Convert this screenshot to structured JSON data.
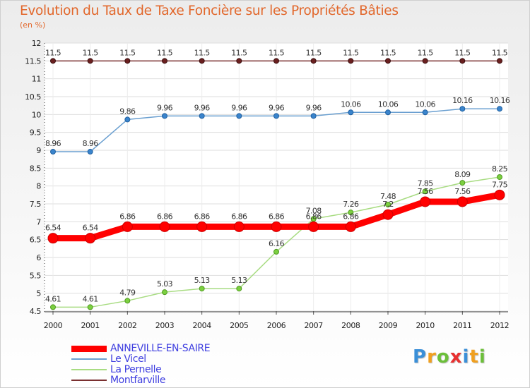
{
  "chart_data": {
    "type": "line",
    "title": "Evolution du Taux de Taxe Foncière sur les Propriétés Bâties",
    "unit_label": "(en %)",
    "x": [
      "2000",
      "2001",
      "2002",
      "2003",
      "2004",
      "2005",
      "2006",
      "2007",
      "2008",
      "2009",
      "2010",
      "2011",
      "2012"
    ],
    "ylim": [
      4.5,
      12
    ],
    "yticks": [
      "4.5",
      "5",
      "5.5",
      "6",
      "6.5",
      "7",
      "7.5",
      "8",
      "8.5",
      "9",
      "9.5",
      "10",
      "10.5",
      "11",
      "11.5",
      "12"
    ],
    "grid": true,
    "series": [
      {
        "name": "ANNEVILLE-EN-SAIRE",
        "color": "#ff0000",
        "values": [
          6.54,
          6.54,
          6.86,
          6.86,
          6.86,
          6.86,
          6.86,
          6.86,
          6.86,
          7.2,
          7.56,
          7.56,
          7.75
        ],
        "labels": [
          "6.54",
          "6.54",
          "6.86",
          "6.86",
          "6.86",
          "6.86",
          "6.86",
          "6.86",
          "6.86",
          "7.2",
          "7.56",
          "7.56",
          "7.75"
        ]
      },
      {
        "name": "Le Vicel",
        "color": "#6a9fd0",
        "values": [
          8.96,
          8.96,
          9.86,
          9.96,
          9.96,
          9.96,
          9.96,
          9.96,
          10.06,
          10.06,
          10.06,
          10.16,
          10.16
        ],
        "labels": [
          "8.96",
          "8.96",
          "9.86",
          "9.96",
          "9.96",
          "9.96",
          "9.96",
          "9.96",
          "10.06",
          "10.06",
          "10.06",
          "10.16",
          "10.16"
        ]
      },
      {
        "name": "La Pernelle",
        "color": "#a8dc82",
        "values": [
          4.61,
          4.61,
          4.79,
          5.03,
          5.13,
          5.13,
          6.16,
          7.08,
          7.26,
          7.48,
          7.85,
          8.09,
          8.25
        ],
        "labels": [
          "4.61",
          "4.61",
          "4.79",
          "5.03",
          "5.13",
          "5.13",
          "6.16",
          "7.08",
          "7.26",
          "7.48",
          "7.85",
          "8.09",
          "8.25"
        ]
      },
      {
        "name": "Montfarville",
        "color": "#7a3030",
        "values": [
          11.5,
          11.5,
          11.5,
          11.5,
          11.5,
          11.5,
          11.5,
          11.5,
          11.5,
          11.5,
          11.5,
          11.5,
          11.5
        ],
        "labels": [
          "11.5",
          "11.5",
          "11.5",
          "11.5",
          "11.5",
          "11.5",
          "11.5",
          "11.5",
          "11.5",
          "11.5",
          "11.5",
          "11.5",
          "11.5"
        ]
      }
    ]
  },
  "branding": {
    "logo_letters": [
      "P",
      "r",
      "o",
      "x",
      "i",
      "t",
      "i"
    ],
    "logo_colors": [
      "#3a8fd8",
      "#f0a020",
      "#6cbf3a",
      "#e83030",
      "#3a8fd8",
      "#f0a020",
      "#6cbf3a"
    ]
  }
}
